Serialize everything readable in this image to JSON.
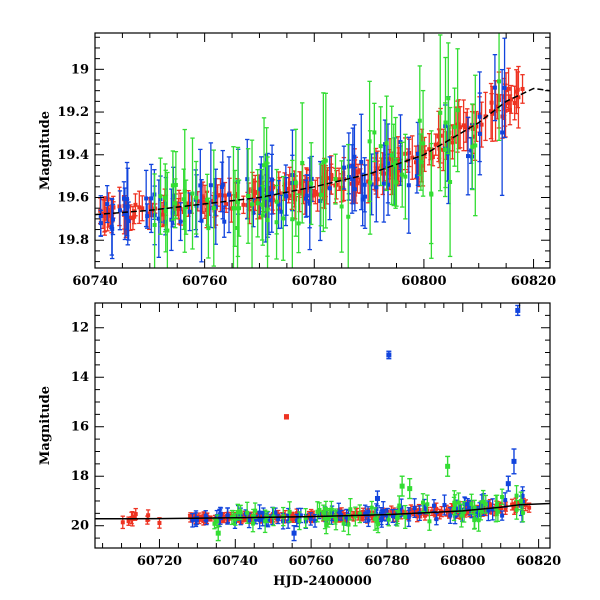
{
  "chart_data": [
    {
      "type": "scatter",
      "id": "top-panel",
      "xlabel": "",
      "ylabel": "Magnitude",
      "xlim": [
        60740,
        60823
      ],
      "ylim": [
        19.93,
        18.83
      ],
      "y_inverted": true,
      "xticks": [
        60740,
        60760,
        60780,
        60800,
        60820
      ],
      "yticks": [
        19.0,
        19.2,
        19.4,
        19.6,
        19.8
      ],
      "ytick_labels": [
        "19",
        "19.2",
        "19.4",
        "19.6",
        "19.8"
      ],
      "series_colors": {
        "red": "#ee3322",
        "blue": "#1144dd",
        "green": "#33dd33",
        "model": "#000000"
      },
      "series": [
        {
          "color_key": "red",
          "start": 60740,
          "end": 60818,
          "n": 230,
          "seed": 11,
          "scatter": 0.04,
          "err_min": 0.02,
          "err_max": 0.09,
          "err_late": 0.16
        },
        {
          "color_key": "blue",
          "start": 60740,
          "end": 60815,
          "n": 95,
          "seed": 23,
          "scatter": 0.1,
          "err_min": 0.05,
          "err_max": 0.2,
          "err_late": 0.35
        },
        {
          "color_key": "green",
          "start": 60750,
          "end": 60815,
          "n": 70,
          "seed": 37,
          "scatter": 0.16,
          "err_min": 0.1,
          "err_max": 0.3,
          "err_late": 0.45
        }
      ],
      "model_curve": [
        [
          60740,
          19.68
        ],
        [
          60750,
          19.66
        ],
        [
          60760,
          19.63
        ],
        [
          60770,
          19.6
        ],
        [
          60780,
          19.55
        ],
        [
          60790,
          19.49
        ],
        [
          60800,
          19.4
        ],
        [
          60810,
          19.25
        ],
        [
          60815,
          19.15
        ],
        [
          60820,
          19.09
        ],
        [
          60823,
          19.1
        ]
      ]
    },
    {
      "type": "scatter",
      "id": "bottom-panel",
      "xlabel": "HJD-2400000",
      "ylabel": "Magnitude",
      "xlim": [
        60703,
        60823
      ],
      "ylim": [
        20.9,
        11.0
      ],
      "y_inverted": true,
      "xticks": [
        60720,
        60740,
        60760,
        60780,
        60800,
        60820
      ],
      "yticks": [
        12,
        14,
        16,
        18,
        20
      ],
      "ytick_labels": [
        "12",
        "14",
        "16",
        "18",
        "20"
      ],
      "series_colors": {
        "red": "#ee3322",
        "blue": "#1144dd",
        "green": "#33dd33",
        "model": "#000000"
      },
      "series": [
        {
          "color_key": "red",
          "start": 60707,
          "end": 60720,
          "n": 9,
          "seed": 51,
          "scatter": 0.2,
          "err_min": 0.1,
          "err_max": 0.3,
          "err_late": 0.3
        },
        {
          "color_key": "red",
          "start": 60728,
          "end": 60818,
          "n": 230,
          "seed": 52,
          "scatter": 0.12,
          "err_min": 0.08,
          "err_max": 0.2,
          "err_late": 0.3
        },
        {
          "color_key": "blue",
          "start": 60728,
          "end": 60816,
          "n": 95,
          "seed": 53,
          "scatter": 0.25,
          "err_min": 0.15,
          "err_max": 0.35,
          "err_late": 0.5
        },
        {
          "color_key": "green",
          "start": 60733,
          "end": 60816,
          "n": 70,
          "seed": 54,
          "scatter": 0.35,
          "err_min": 0.2,
          "err_max": 0.45,
          "err_late": 0.6
        }
      ],
      "outliers": [
        {
          "x": 60814.5,
          "y": 11.3,
          "err": 0.2,
          "color_key": "blue"
        },
        {
          "x": 60780.5,
          "y": 13.1,
          "err": 0.15,
          "color_key": "blue"
        },
        {
          "x": 60753.5,
          "y": 15.6,
          "err": 0.08,
          "color_key": "red"
        },
        {
          "x": 60796.0,
          "y": 17.6,
          "err": 0.4,
          "color_key": "green"
        },
        {
          "x": 60813.5,
          "y": 17.4,
          "err": 0.5,
          "color_key": "blue"
        },
        {
          "x": 60784.0,
          "y": 18.4,
          "err": 0.4,
          "color_key": "green"
        },
        {
          "x": 60786.0,
          "y": 18.5,
          "err": 0.4,
          "color_key": "green"
        },
        {
          "x": 60777.5,
          "y": 18.9,
          "err": 0.3,
          "color_key": "blue"
        },
        {
          "x": 60735.5,
          "y": 20.3,
          "err": 0.3,
          "color_key": "green"
        },
        {
          "x": 60755.5,
          "y": 20.3,
          "err": 0.3,
          "color_key": "blue"
        },
        {
          "x": 60812.0,
          "y": 18.3,
          "err": 0.3,
          "color_key": "blue"
        }
      ],
      "model_curve": [
        [
          60703,
          19.72
        ],
        [
          60720,
          19.71
        ],
        [
          60740,
          19.68
        ],
        [
          60760,
          19.63
        ],
        [
          60780,
          19.55
        ],
        [
          60800,
          19.4
        ],
        [
          60810,
          19.25
        ],
        [
          60815,
          19.15
        ],
        [
          60823,
          19.1
        ]
      ]
    }
  ]
}
